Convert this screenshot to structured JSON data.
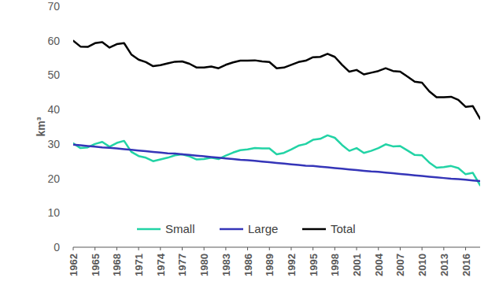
{
  "chart_data": {
    "type": "line",
    "y_label": "km³",
    "x": [
      1962,
      1963,
      1964,
      1965,
      1966,
      1967,
      1968,
      1969,
      1970,
      1971,
      1972,
      1973,
      1974,
      1975,
      1976,
      1977,
      1978,
      1979,
      1980,
      1981,
      1982,
      1983,
      1984,
      1985,
      1986,
      1987,
      1988,
      1989,
      1990,
      1991,
      1992,
      1993,
      1994,
      1995,
      1996,
      1997,
      1998,
      1999,
      2000,
      2001,
      2002,
      2003,
      2004,
      2005,
      2006,
      2007,
      2008,
      2009,
      2010,
      2011,
      2012,
      2013,
      2014,
      2015,
      2016,
      2017,
      2018
    ],
    "xlim": [
      1962,
      2018
    ],
    "xticks": [
      1962,
      1965,
      1968,
      1971,
      1974,
      1977,
      1980,
      1983,
      1986,
      1989,
      1992,
      1995,
      1998,
      2001,
      2004,
      2007,
      2010,
      2013,
      2016
    ],
    "ylim": [
      0,
      70
    ],
    "yticks": [
      0,
      10,
      20,
      30,
      40,
      50,
      60,
      70
    ],
    "grid": false,
    "legend": "bottom",
    "series": [
      {
        "name": "Small",
        "color": "#22d3a5",
        "values": [
          30.2,
          28.8,
          29,
          30,
          30.6,
          29.2,
          30.3,
          30.9,
          27.7,
          26.5,
          26,
          25,
          25.5,
          26,
          26.7,
          27,
          26.4,
          25.5,
          25.6,
          26,
          25.6,
          26.6,
          27.5,
          28.2,
          28.4,
          28.8,
          28.7,
          28.7,
          27,
          27.4,
          28.4,
          29.5,
          30,
          31.2,
          31.5,
          32.5,
          31.8,
          29.7,
          28,
          28.8,
          27.4,
          28,
          28.8,
          29.9,
          29.3,
          29.4,
          28.1,
          26.8,
          26.7,
          24.6,
          23.1,
          23.3,
          23.6,
          23,
          21.2,
          21.6,
          18
        ]
      },
      {
        "name": "Large",
        "color": "#3535b8",
        "values": [
          29.8,
          29.6,
          29.4,
          29.2,
          29.0,
          28.9,
          28.7,
          28.5,
          28.3,
          28.1,
          27.9,
          27.7,
          27.5,
          27.3,
          27.2,
          27.0,
          26.8,
          26.6,
          26.4,
          26.2,
          26.0,
          25.8,
          25.6,
          25.4,
          25.3,
          25.1,
          24.9,
          24.7,
          24.5,
          24.3,
          24.1,
          23.9,
          23.7,
          23.6,
          23.4,
          23.2,
          23.0,
          22.8,
          22.6,
          22.4,
          22.2,
          22.0,
          21.9,
          21.7,
          21.5,
          21.3,
          21.1,
          20.9,
          20.7,
          20.5,
          20.3,
          20.1,
          19.9,
          19.8,
          19.6,
          19.4,
          19.2
        ]
      },
      {
        "name": "Total",
        "color": "#000000",
        "values": [
          60,
          58.3,
          58.2,
          59.3,
          59.6,
          58,
          59,
          59.3,
          56,
          54.5,
          53.8,
          52.6,
          52.9,
          53.4,
          53.9,
          54,
          53.3,
          52.2,
          52.2,
          52.5,
          52,
          53,
          53.7,
          54.2,
          54.2,
          54.3,
          54,
          53.8,
          52,
          52.2,
          53,
          53.8,
          54.2,
          55.2,
          55.3,
          56.2,
          55.3,
          53,
          51,
          51.5,
          50.2,
          50.7,
          51.2,
          52,
          51.2,
          51,
          49.6,
          48.1,
          47.8,
          45.3,
          43.6,
          43.6,
          43.7,
          42.8,
          40.8,
          41,
          37.3
        ]
      }
    ]
  }
}
